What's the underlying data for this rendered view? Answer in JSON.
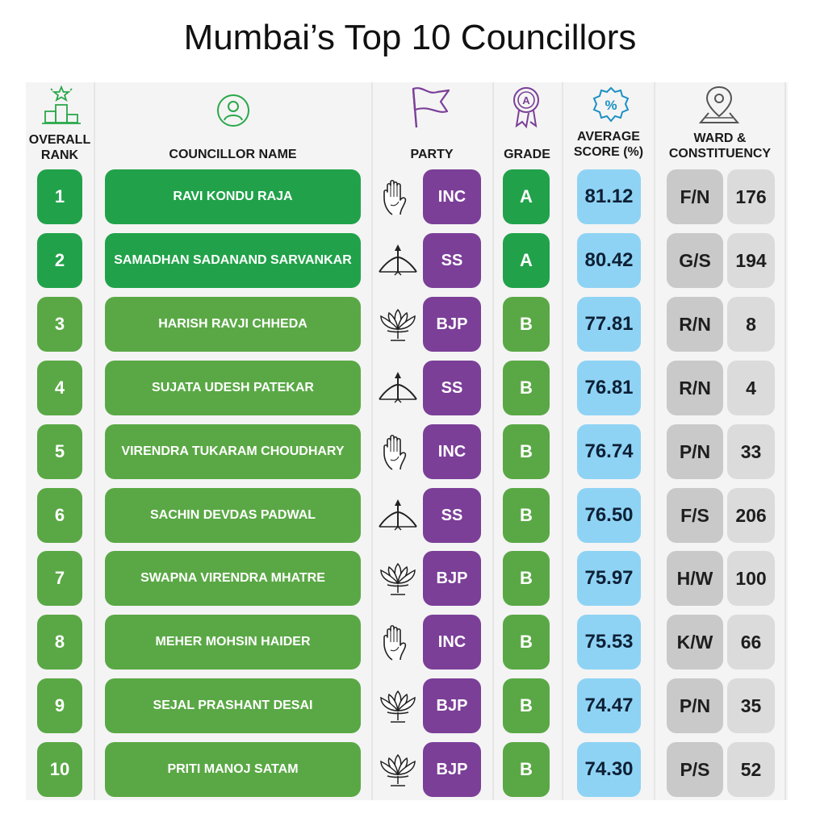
{
  "title": "Mumbai’s Top 10 Councillors",
  "headers": {
    "rank_line1": "OVERALL",
    "rank_line2": "RANK",
    "name": "COUNCILLOR NAME",
    "party": "PARTY",
    "grade": "GRADE",
    "score_line1": "AVERAGE",
    "score_line2": "SCORE (%)",
    "ward_line1": "WARD &",
    "ward_line2": "CONSTITUENCY"
  },
  "header_icons": {
    "rank": "podium-star-icon",
    "name": "person-icon",
    "party": "flag-icon",
    "grade": "badge-a-icon",
    "score": "percent-badge-icon",
    "ward": "map-pin-icon"
  },
  "colors": {
    "grade_a_green": "#21a24a",
    "grade_b_green": "#5aa845",
    "party_purple": "#7b3f98",
    "score_blue": "#8fd3f4",
    "ward_grey": "#c9c9c9"
  },
  "party_symbols": {
    "INC": "hand-icon",
    "SS": "bow-arrow-icon",
    "BJP": "lotus-icon"
  },
  "rows": [
    {
      "rank": "1",
      "name": "RAVI KONDU RAJA",
      "party": "INC",
      "grade": "A",
      "score": "81.12",
      "ward": "F/N",
      "ward_no": "176"
    },
    {
      "rank": "2",
      "name": "SAMADHAN SADANAND SARVANKAR",
      "party": "SS",
      "grade": "A",
      "score": "80.42",
      "ward": "G/S",
      "ward_no": "194"
    },
    {
      "rank": "3",
      "name": "HARISH RAVJI CHHEDA",
      "party": "BJP",
      "grade": "B",
      "score": "77.81",
      "ward": "R/N",
      "ward_no": "8"
    },
    {
      "rank": "4",
      "name": "SUJATA UDESH PATEKAR",
      "party": "SS",
      "grade": "B",
      "score": "76.81",
      "ward": "R/N",
      "ward_no": "4"
    },
    {
      "rank": "5",
      "name": "VIRENDRA TUKARAM CHOUDHARY",
      "party": "INC",
      "grade": "B",
      "score": "76.74",
      "ward": "P/N",
      "ward_no": "33"
    },
    {
      "rank": "6",
      "name": "SACHIN DEVDAS PADWAL",
      "party": "SS",
      "grade": "B",
      "score": "76.50",
      "ward": "F/S",
      "ward_no": "206"
    },
    {
      "rank": "7",
      "name": "SWAPNA VIRENDRA MHATRE",
      "party": "BJP",
      "grade": "B",
      "score": "75.97",
      "ward": "H/W",
      "ward_no": "100"
    },
    {
      "rank": "8",
      "name": "MEHER MOHSIN HAIDER",
      "party": "INC",
      "grade": "B",
      "score": "75.53",
      "ward": "K/W",
      "ward_no": "66"
    },
    {
      "rank": "9",
      "name": "SEJAL PRASHANT DESAI",
      "party": "BJP",
      "grade": "B",
      "score": "74.47",
      "ward": "P/N",
      "ward_no": "35"
    },
    {
      "rank": "10",
      "name": "PRITI MANOJ SATAM",
      "party": "BJP",
      "grade": "B",
      "score": "74.30",
      "ward": "P/S",
      "ward_no": "52"
    }
  ]
}
